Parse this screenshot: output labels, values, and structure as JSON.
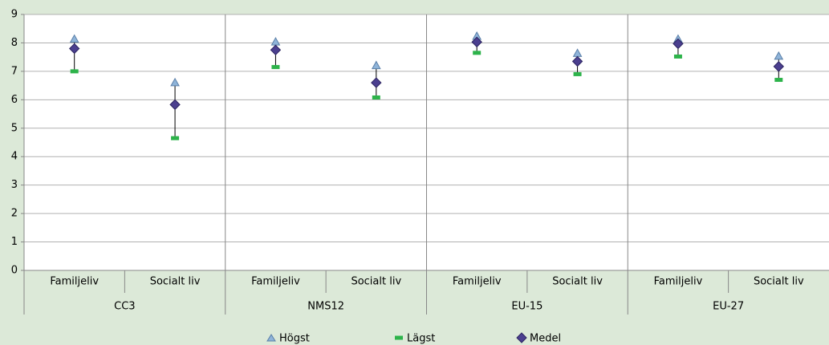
{
  "chart_data": {
    "type": "high-low-mean",
    "groups": [
      "CC3",
      "NMS12",
      "EU-15",
      "EU-27"
    ],
    "categories": [
      "Familjeliv",
      "Socialt liv",
      "Familjeliv",
      "Socialt liv",
      "Familjeliv",
      "Socialt liv",
      "Familjeliv",
      "Socialt liv"
    ],
    "series": [
      {
        "name": "Högst",
        "color": "#8fb4d9",
        "marker": "triangle",
        "values": [
          8.15,
          6.62,
          8.05,
          7.22,
          8.25,
          7.65,
          8.15,
          7.55
        ]
      },
      {
        "name": "Lägst",
        "color": "#2db34a",
        "marker": "dash",
        "values": [
          7.0,
          4.65,
          7.15,
          6.08,
          7.65,
          6.9,
          7.52,
          6.7
        ]
      },
      {
        "name": "Medel",
        "color": "#4b3f8f",
        "marker": "diamond",
        "values": [
          7.8,
          5.83,
          7.75,
          6.6,
          8.03,
          7.35,
          7.97,
          7.17
        ]
      }
    ],
    "ylim": [
      0,
      9
    ],
    "yticks": [
      0,
      1,
      2,
      3,
      4,
      5,
      6,
      7,
      8,
      9
    ],
    "grid": true
  }
}
